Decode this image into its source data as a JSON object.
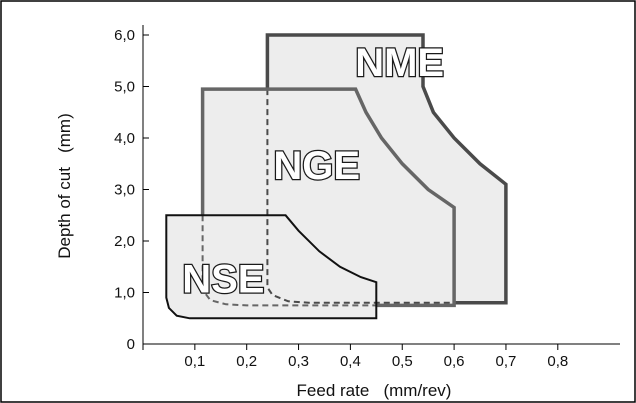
{
  "chart_data": {
    "type": "area",
    "title": "",
    "xlabel": "Feed rate   (mm/rev)",
    "ylabel": "Depth of cut   (mm)",
    "xlim": [
      0,
      0.9
    ],
    "ylim": [
      0,
      6.2
    ],
    "x_ticks": [
      "0",
      "0,1",
      "0,2",
      "0,3",
      "0,4",
      "0,5",
      "0,6",
      "0,7",
      "0,8"
    ],
    "y_ticks": [
      "0",
      "1,0",
      "2,0",
      "3,0",
      "4,0",
      "5,0",
      "6,0"
    ],
    "grid": false,
    "colors": {
      "fill": "#ededed",
      "NME_stroke": "#4a4a4a",
      "NGE_stroke": "#666666",
      "NSE_stroke": "#111111",
      "frame": "#000000",
      "label_fill": "#ffffff",
      "label_stroke": "#1a1a1a"
    },
    "regions": [
      {
        "name": "NME",
        "outline": [
          [
            0.24,
            0.8
          ],
          [
            0.24,
            6.0
          ],
          [
            0.54,
            6.0
          ],
          [
            0.54,
            5.0
          ],
          [
            0.56,
            4.5
          ],
          [
            0.6,
            4.0
          ],
          [
            0.65,
            3.5
          ],
          [
            0.7,
            3.1
          ],
          [
            0.7,
            0.8
          ]
        ]
      },
      {
        "name": "NGE",
        "outline": [
          [
            0.115,
            0.75
          ],
          [
            0.115,
            4.95
          ],
          [
            0.41,
            4.95
          ],
          [
            0.43,
            4.5
          ],
          [
            0.46,
            4.0
          ],
          [
            0.5,
            3.5
          ],
          [
            0.55,
            3.0
          ],
          [
            0.6,
            2.65
          ],
          [
            0.6,
            0.75
          ]
        ]
      },
      {
        "name": "NSE",
        "outline": [
          [
            0.045,
            2.5
          ],
          [
            0.275,
            2.5
          ],
          [
            0.3,
            2.2
          ],
          [
            0.34,
            1.8
          ],
          [
            0.38,
            1.5
          ],
          [
            0.42,
            1.3
          ],
          [
            0.45,
            1.2
          ],
          [
            0.45,
            0.5
          ],
          [
            0.09,
            0.5
          ],
          [
            0.065,
            0.55
          ],
          [
            0.05,
            0.7
          ],
          [
            0.045,
            0.9
          ]
        ]
      }
    ]
  }
}
